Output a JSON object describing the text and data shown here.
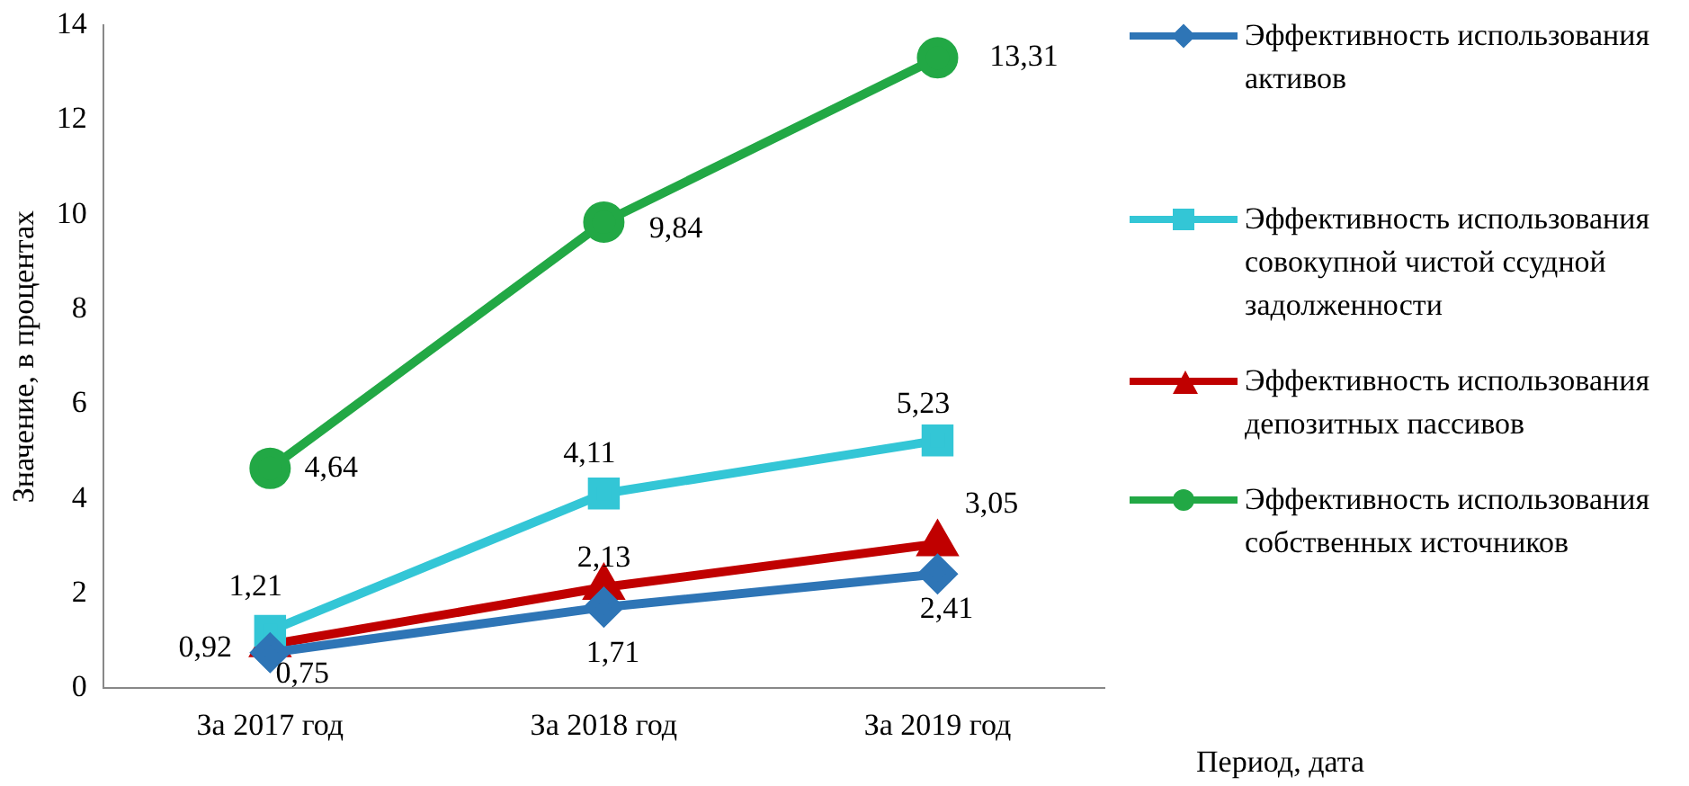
{
  "chart_data": {
    "type": "line",
    "xlabel": "Период, дата",
    "ylabel": "Значение, в процентах",
    "categories": [
      "За 2017 год",
      "За 2018 год",
      "За 2019 год"
    ],
    "series": [
      {
        "name": "Эффективность использования активов",
        "color": "#2e75b6",
        "marker": "diamond",
        "values": [
          0.75,
          1.71,
          2.41
        ],
        "value_labels": [
          "0,75",
          "1,71",
          "2,41"
        ]
      },
      {
        "name": "Эффективность использования совокупной чистой ссудной задолженности",
        "color": "#33c6d6",
        "marker": "square",
        "values": [
          1.21,
          4.11,
          5.23
        ],
        "value_labels": [
          "1,21",
          "4,11",
          "5,23"
        ]
      },
      {
        "name": "Эффективность использования депозитных пассивов",
        "color": "#c00000",
        "marker": "triangle",
        "values": [
          0.92,
          2.13,
          3.05
        ],
        "value_labels": [
          "0,92",
          "2,13",
          "3,05"
        ]
      },
      {
        "name": "Эффективность использования собственных источников",
        "color": "#22a845",
        "marker": "circle",
        "values": [
          4.64,
          9.84,
          13.31
        ],
        "value_labels": [
          "4,64",
          "9,84",
          "13,31"
        ]
      }
    ],
    "ylim": [
      0,
      14
    ],
    "yticks": [
      0,
      2,
      4,
      6,
      8,
      10,
      12,
      14
    ],
    "grid": false,
    "legend": "right",
    "line_style": "solid"
  }
}
